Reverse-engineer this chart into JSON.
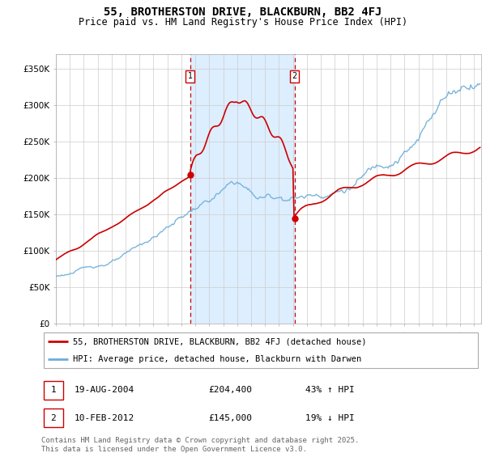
{
  "title": "55, BROTHERSTON DRIVE, BLACKBURN, BB2 4FJ",
  "subtitle": "Price paid vs. HM Land Registry's House Price Index (HPI)",
  "ylabel_vals": [
    "£0",
    "£50K",
    "£100K",
    "£150K",
    "£200K",
    "£250K",
    "£300K",
    "£350K"
  ],
  "ylim": [
    0,
    370000
  ],
  "yticks": [
    0,
    50000,
    100000,
    150000,
    200000,
    250000,
    300000,
    350000
  ],
  "sale1_date_num": 2004.62,
  "sale1_price": 204400,
  "sale1_label": "19-AUG-2004",
  "sale1_pct": "43% ↑ HPI",
  "sale2_date_num": 2012.12,
  "sale2_price": 145000,
  "sale2_label": "10-FEB-2012",
  "sale2_pct": "19% ↓ HPI",
  "hpi_color": "#6baed6",
  "price_color": "#cc0000",
  "shade_color": "#ddeeff",
  "vline_color": "#cc0000",
  "grid_color": "#cccccc",
  "bg_color": "#ffffff",
  "legend_label_price": "55, BROTHERSTON DRIVE, BLACKBURN, BB2 4FJ (detached house)",
  "legend_label_hpi": "HPI: Average price, detached house, Blackburn with Darwen",
  "footnote": "Contains HM Land Registry data © Crown copyright and database right 2025.\nThis data is licensed under the Open Government Licence v3.0.",
  "title_fontsize": 10,
  "subtitle_fontsize": 8.5,
  "tick_fontsize": 7.5,
  "legend_fontsize": 7.5,
  "footnote_fontsize": 6.5
}
